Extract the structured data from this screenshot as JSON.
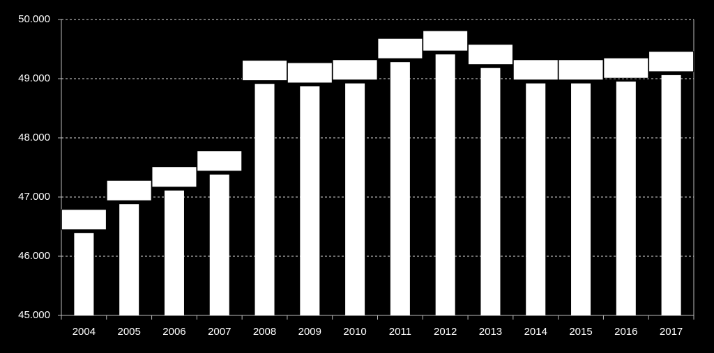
{
  "chart_data": {
    "type": "bar",
    "categories": [
      "2004",
      "2005",
      "2006",
      "2007",
      "2008",
      "2009",
      "2010",
      "2011",
      "2012",
      "2013",
      "2014",
      "2015",
      "2016",
      "2017"
    ],
    "values": [
      46390,
      46880,
      47110,
      47380,
      48910,
      48870,
      48920,
      49280,
      49410,
      49180,
      48920,
      48920,
      48950,
      49060
    ],
    "color": "#ffffff",
    "ylim": [
      45000,
      50000
    ],
    "yticks": [
      {
        "value": 45000,
        "label": "45.000"
      },
      {
        "value": 46000,
        "label": "46.000"
      },
      {
        "value": 47000,
        "label": "47.000"
      },
      {
        "value": 48000,
        "label": "48.000"
      },
      {
        "value": 49000,
        "label": "49.000"
      },
      {
        "value": 50000,
        "label": "50.000"
      }
    ],
    "grid": true
  }
}
